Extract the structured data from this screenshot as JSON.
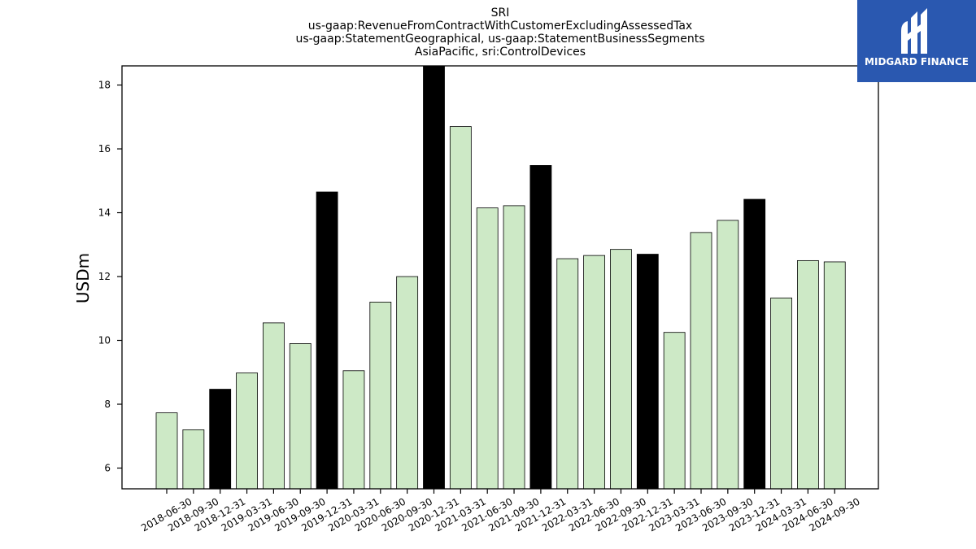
{
  "chart_data": {
    "type": "bar",
    "title_lines": [
      "SRI",
      "us-gaap:RevenueFromContractWithCustomerExcludingAssessedTax",
      "us-gaap:StatementGeographical, us-gaap:StatementBusinessSegments",
      "AsiaPacific, sri:ControlDevices"
    ],
    "ylabel": "USDm",
    "xlabel": "",
    "ylim": [
      5.35,
      18.6
    ],
    "yticks": [
      6,
      8,
      10,
      12,
      14,
      16,
      18
    ],
    "grid": false,
    "categories": [
      "2018-06-30",
      "2018-09-30",
      "2018-12-31",
      "2019-03-31",
      "2019-06-30",
      "2019-09-30",
      "2019-12-31",
      "2020-03-31",
      "2020-06-30",
      "2020-09-30",
      "2020-12-31",
      "2021-03-31",
      "2021-06-30",
      "2021-09-30",
      "2021-12-31",
      "2022-03-31",
      "2022-06-30",
      "2022-09-30",
      "2022-12-31",
      "2023-03-31",
      "2023-06-30",
      "2023-09-30",
      "2023-12-31",
      "2024-03-31",
      "2024-06-30",
      "2024-09-30"
    ],
    "values": [
      7.73,
      7.2,
      8.47,
      8.98,
      10.55,
      9.9,
      14.65,
      9.05,
      11.2,
      12.0,
      18.7,
      16.7,
      14.15,
      14.22,
      15.48,
      12.56,
      12.66,
      12.85,
      12.7,
      10.25,
      13.38,
      13.76,
      14.42,
      11.33,
      12.5,
      12.46
    ],
    "highlight_categories": [
      "2018-12-31",
      "2019-12-31",
      "2020-12-31",
      "2021-12-31",
      "2022-12-31",
      "2023-12-31"
    ],
    "colors": {
      "bar": "#cde9c6",
      "highlight": "#000000",
      "edge": "#000000"
    }
  },
  "logo": {
    "text": "MIDGARD FINANCE",
    "background": "#2a58b0"
  }
}
